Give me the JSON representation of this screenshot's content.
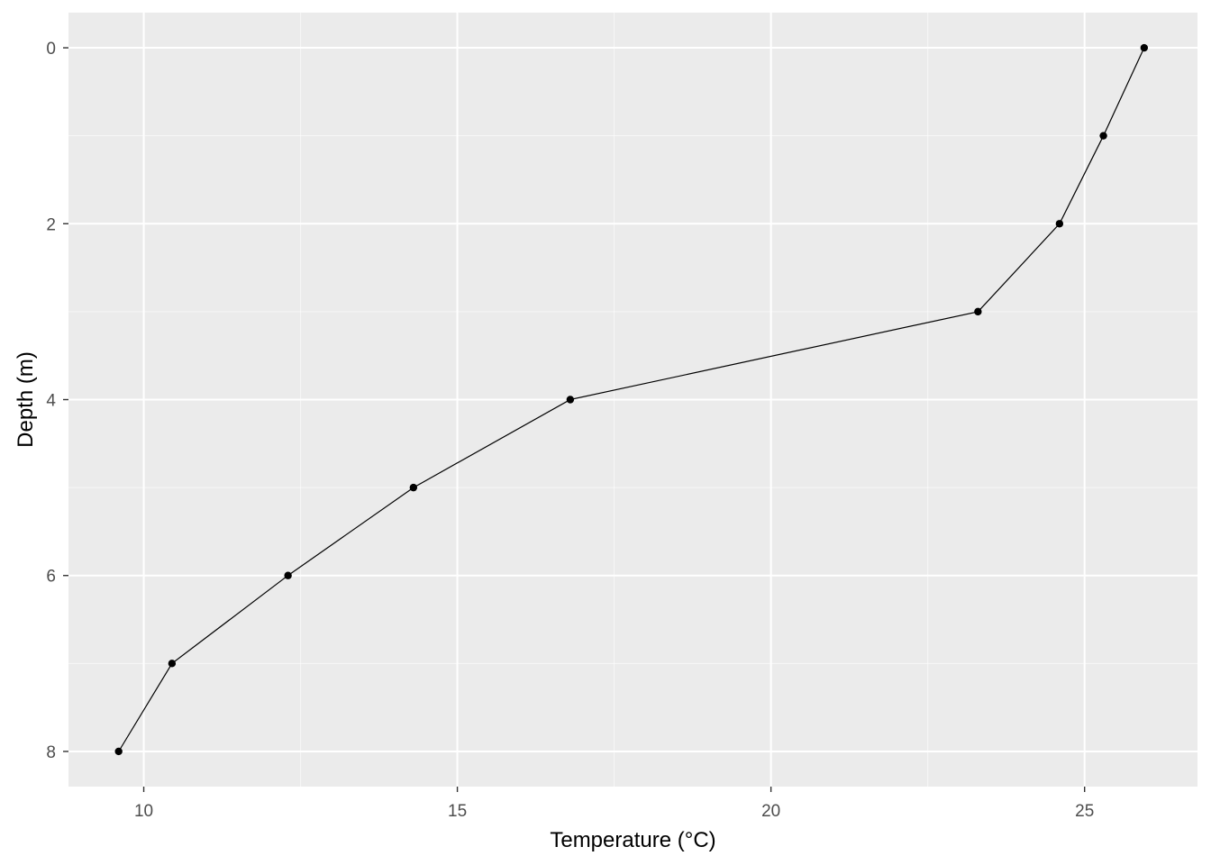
{
  "chart_data": {
    "type": "line",
    "title": "",
    "xlabel": "Temperature (°C)",
    "ylabel": "Depth (m)",
    "xlim": [
      8.8,
      26.8
    ],
    "ylim": [
      -0.4,
      8.4
    ],
    "y_reversed": true,
    "x_ticks": [
      10,
      15,
      20,
      25
    ],
    "x_tick_labels": [
      "10",
      "15",
      "20",
      "25"
    ],
    "y_ticks": [
      0,
      2,
      4,
      6,
      8
    ],
    "y_tick_labels": [
      "0",
      "2",
      "4",
      "6",
      "8"
    ],
    "grid": true,
    "legend": "none",
    "series": [
      {
        "x": [
          25.95,
          25.3,
          24.6,
          23.3,
          16.8,
          14.3,
          12.3,
          10.45,
          9.6
        ],
        "y": [
          0,
          1,
          2,
          3,
          4,
          5,
          6,
          7,
          8
        ]
      }
    ],
    "colors": {
      "panel": "#ebebeb",
      "grid_major": "#ffffff",
      "line": "#000000",
      "point": "#000000",
      "tick_text": "#4d4d4d",
      "axis_title": "#000000"
    }
  }
}
